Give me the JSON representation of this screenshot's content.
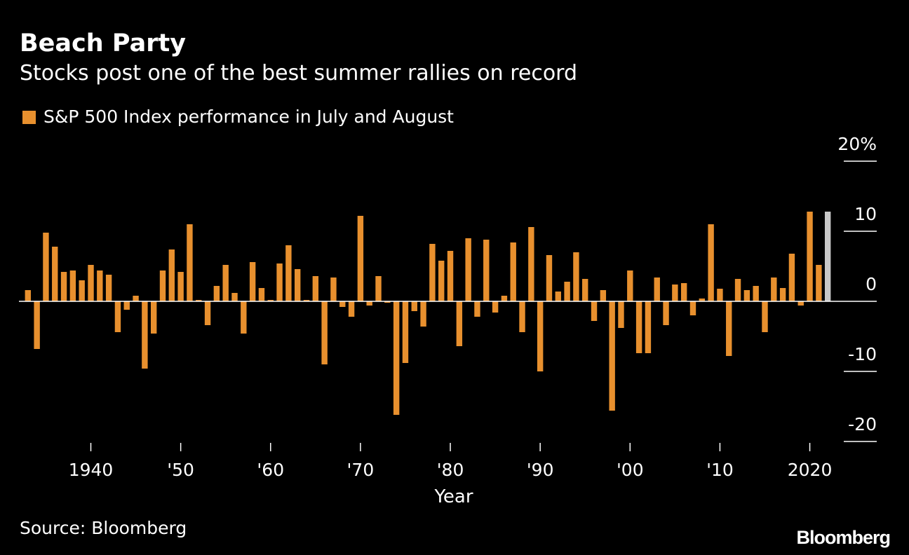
{
  "header": {
    "title": "Beach Party",
    "subtitle": "Stocks post one of the best summer rallies on record"
  },
  "footer": {
    "source": "Source: Bloomberg",
    "brand": "Bloomberg"
  },
  "colors": {
    "background": "#000000",
    "bar": "#e8902e",
    "highlight": "#c8c8c8",
    "text": "#ffffff",
    "axis": "#ffffff"
  },
  "chart_data": {
    "type": "bar",
    "title": "Beach Party",
    "subtitle": "Stocks post one of the best summer rallies on record",
    "xlabel": "Year",
    "ylabel": "",
    "ylim": [
      -20,
      20
    ],
    "y_ticks": [
      20,
      10,
      0,
      -10,
      -20
    ],
    "y_tick_labels": [
      "20%",
      "10",
      "0",
      "-10",
      "-20"
    ],
    "x_ticks": [
      1940,
      1950,
      1960,
      1970,
      1980,
      1990,
      2000,
      2010,
      2020
    ],
    "x_tick_labels": [
      "1940",
      "'50",
      "'60",
      "'70",
      "'80",
      "'90",
      "'00",
      "'10",
      "2020"
    ],
    "x_range": [
      1932,
      2023
    ],
    "grid": false,
    "legend": {
      "position": "top-left",
      "entries": [
        {
          "name": "S&P 500 Index performance in July and August",
          "color": "#e8902e"
        }
      ]
    },
    "series": [
      {
        "name": "S&P 500 Index performance in July and August",
        "color": "#e8902e",
        "highlight_color": "#c8c8c8",
        "highlight_x": [
          2022
        ],
        "x": [
          1933,
          1934,
          1935,
          1936,
          1937,
          1938,
          1939,
          1940,
          1941,
          1942,
          1943,
          1944,
          1945,
          1946,
          1947,
          1948,
          1949,
          1950,
          1951,
          1952,
          1953,
          1954,
          1955,
          1956,
          1957,
          1958,
          1959,
          1960,
          1961,
          1962,
          1963,
          1964,
          1965,
          1966,
          1967,
          1968,
          1969,
          1970,
          1971,
          1972,
          1973,
          1974,
          1975,
          1976,
          1977,
          1978,
          1979,
          1980,
          1981,
          1982,
          1983,
          1984,
          1985,
          1986,
          1987,
          1988,
          1989,
          1990,
          1991,
          1992,
          1993,
          1994,
          1995,
          1996,
          1997,
          1998,
          1999,
          2000,
          2001,
          2002,
          2003,
          2004,
          2005,
          2006,
          2007,
          2008,
          2009,
          2010,
          2011,
          2012,
          2013,
          2014,
          2015,
          2016,
          2017,
          2018,
          2019,
          2020,
          2021,
          2022
        ],
        "values": [
          1.6,
          -6.8,
          9.8,
          7.8,
          4.2,
          4.4,
          3.0,
          5.2,
          4.4,
          3.8,
          -4.4,
          -1.2,
          0.8,
          -9.6,
          -4.6,
          4.4,
          7.4,
          4.2,
          11.0,
          0.2,
          -3.4,
          2.2,
          5.2,
          1.2,
          -4.6,
          5.6,
          1.9,
          0.2,
          5.4,
          8.0,
          4.6,
          0.2,
          3.6,
          -9.0,
          3.4,
          -0.8,
          -2.2,
          12.2,
          -0.6,
          3.6,
          -0.2,
          -16.2,
          -8.8,
          -1.4,
          -3.6,
          8.2,
          5.8,
          7.2,
          -6.4,
          9.0,
          -2.2,
          8.8,
          -1.6,
          0.8,
          8.4,
          -4.4,
          10.6,
          -10.0,
          6.6,
          1.4,
          2.8,
          7.0,
          3.2,
          -2.8,
          1.6,
          -15.6,
          -3.8,
          4.4,
          -7.4,
          -7.4,
          3.4,
          -3.4,
          2.4,
          2.6,
          -2.0,
          0.4,
          11.0,
          1.8,
          -7.8,
          3.2,
          1.6,
          2.2,
          -4.4,
          3.4,
          1.9,
          6.8,
          -0.6,
          12.8,
          5.2,
          12.8
        ]
      }
    ]
  }
}
